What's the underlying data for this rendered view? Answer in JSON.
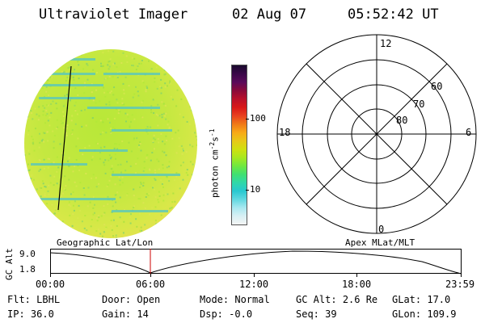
{
  "header": {
    "instrument": "Ultraviolet Imager",
    "date": "02 Aug 07",
    "time": "05:52:42 UT"
  },
  "colorbar": {
    "unit_label": "photon cm",
    "unit_exp1": "-2",
    "unit_s": "s",
    "unit_exp2": "-1",
    "ticks": [
      "100",
      "10"
    ],
    "colors": [
      "#1a0a2e",
      "#3a0848",
      "#5a0a5a",
      "#8a0a3a",
      "#b8102a",
      "#d81818",
      "#e84020",
      "#f07818",
      "#f8a818",
      "#e8c818",
      "#d0e010",
      "#a8e820",
      "#70e840",
      "#40e070",
      "#30d8a8",
      "#28c8d0",
      "#60d8e0",
      "#a8e8f0",
      "#d8f0f4",
      "#f4f4f4"
    ]
  },
  "polar": {
    "labels": {
      "top": "12",
      "left": "18",
      "right": "6",
      "bottom": "0"
    },
    "lat_labels": [
      "60",
      "70",
      "80"
    ]
  },
  "orbit": {
    "axis_label": "GC Alt",
    "y_ticks": [
      "9.0",
      "1.8"
    ],
    "left_label": "Geographic Lat/Lon",
    "right_label": "Apex MLat/MLT",
    "x_ticks": [
      "00:00",
      "06:00",
      "12:00",
      "18:00",
      "23:59"
    ],
    "marker_color": "#cc0000"
  },
  "footer": {
    "row1": [
      {
        "label": "Flt:",
        "value": "LBHL"
      },
      {
        "label": "Door:",
        "value": "Open"
      },
      {
        "label": "Mode:",
        "value": "Normal"
      },
      {
        "label": "GC Alt:",
        "value": "2.6 Re"
      },
      {
        "label": "GLat:",
        "value": "17.0"
      }
    ],
    "row2": [
      {
        "label": "IP:",
        "value": "36.0"
      },
      {
        "label": "Gain:",
        "value": "14"
      },
      {
        "label": "Dsp:",
        "value": "-0.0"
      },
      {
        "label": "Seq:",
        "value": "39"
      },
      {
        "label": "GLon:",
        "value": "109.9"
      }
    ]
  }
}
